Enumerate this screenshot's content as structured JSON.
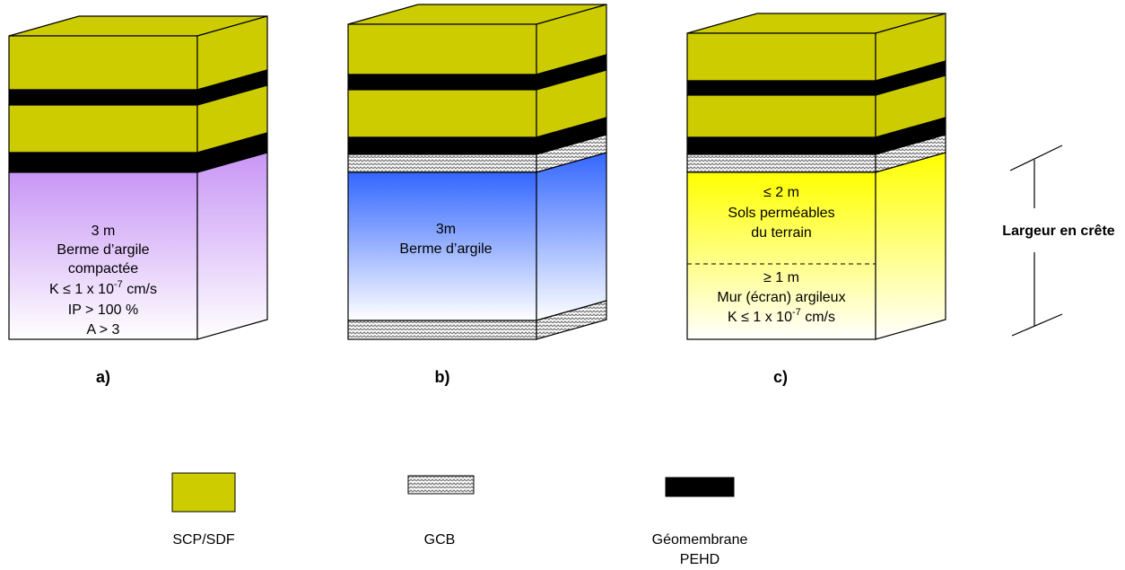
{
  "blocks": [
    {
      "label": "a)",
      "lines": [
        {
          "text": "3 m"
        },
        {
          "text": "Berme d’argile"
        },
        {
          "text": "compactée"
        },
        {
          "text": "K ≤ 1 x 10",
          "sup": "-7",
          "after": " cm/s"
        },
        {
          "text": "IP > 100 %"
        },
        {
          "text": "A > 3"
        }
      ]
    },
    {
      "label": "b)",
      "lines": [
        {
          "text": "3m"
        },
        {
          "text": "Berme d’argile"
        }
      ]
    },
    {
      "label": "c)",
      "upper": [
        {
          "text": "≤ 2 m"
        },
        {
          "text": "Sols perméables"
        },
        {
          "text": "du terrain"
        }
      ],
      "lower": [
        {
          "text": "≥ 1 m"
        },
        {
          "text": "Mur (écran) argileux"
        },
        {
          "text": "K ≤ 1 x 10",
          "sup": "-7",
          "after": " cm/s"
        }
      ]
    }
  ],
  "annotation": "Largeur en crête",
  "legend": [
    {
      "lines": [
        "SCP/SDF"
      ]
    },
    {
      "lines": [
        "GCB"
      ]
    },
    {
      "lines": [
        "Géomembrane",
        "PEHD"
      ]
    }
  ]
}
